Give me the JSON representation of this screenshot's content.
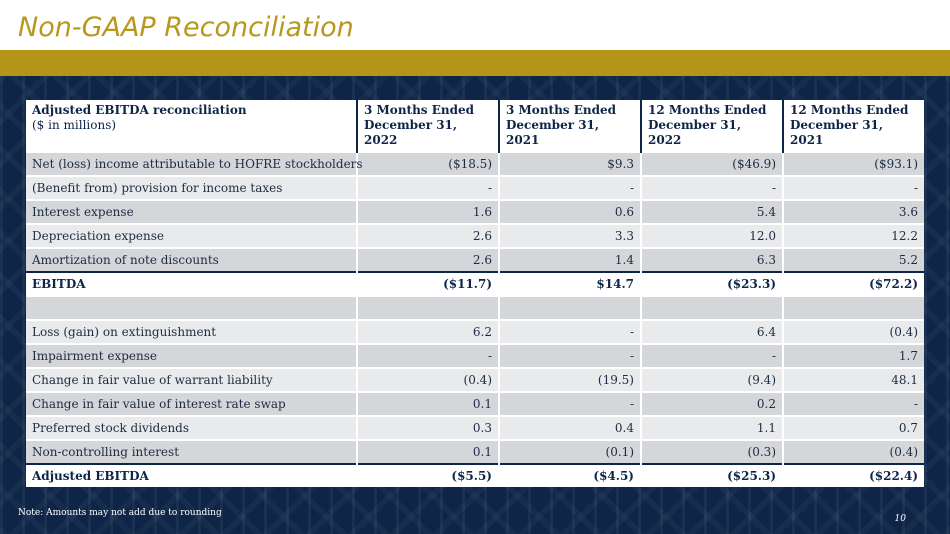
{
  "title": "Non-GAAP Reconciliation",
  "table": {
    "header": {
      "label_main": "Adjusted EBITDA reconciliation",
      "label_sub": "($ in millions)",
      "columns": [
        {
          "line1": "3 Months Ended",
          "line2": "December 31, 2022"
        },
        {
          "line1": "3 Months Ended",
          "line2": "December 31, 2021"
        },
        {
          "line1": "12 Months Ended",
          "line2": "December 31, 2022"
        },
        {
          "line1": "12 Months Ended",
          "line2": "December 31, 2021"
        }
      ]
    },
    "rows": [
      {
        "label": "Net (loss) income attributable to HOFRE stockholders",
        "values": [
          "($18.5)",
          "$9.3",
          "($46.9)",
          "($93.1)"
        ]
      },
      {
        "label": "(Benefit from) provision for income taxes",
        "values": [
          "-",
          "-",
          "-",
          "-"
        ]
      },
      {
        "label": "Interest expense",
        "values": [
          "1.6",
          "0.6",
          "5.4",
          "3.6"
        ]
      },
      {
        "label": "Depreciation expense",
        "values": [
          "2.6",
          "3.3",
          "12.0",
          "12.2"
        ]
      },
      {
        "label": "Amortization of note discounts",
        "values": [
          "2.6",
          "1.4",
          "6.3",
          "5.2"
        ]
      },
      {
        "label": "EBITDA",
        "values": [
          "($11.7)",
          "$14.7",
          "($23.3)",
          "($72.2)"
        ]
      },
      {
        "label": "",
        "values": [
          "",
          "",
          "",
          ""
        ]
      },
      {
        "label": "Loss (gain) on extinguishment",
        "values": [
          "6.2",
          "-",
          "6.4",
          "(0.4)"
        ]
      },
      {
        "label": "Impairment expense",
        "values": [
          "-",
          "-",
          "-",
          "1.7"
        ]
      },
      {
        "label": "Change in fair value of warrant liability",
        "values": [
          "(0.4)",
          "(19.5)",
          "(9.4)",
          "48.1"
        ]
      },
      {
        "label": "Change in fair value of interest rate swap",
        "values": [
          "0.1",
          "-",
          "0.2",
          "-"
        ]
      },
      {
        "label": "Preferred stock dividends",
        "values": [
          "0.3",
          "0.4",
          "1.1",
          "0.7"
        ]
      },
      {
        "label": "Non-controlling interest",
        "values": [
          "0.1",
          "(0.1)",
          "(0.3)",
          "(0.4)"
        ]
      },
      {
        "label": "Adjusted EBITDA",
        "values": [
          "($5.5)",
          "($4.5)",
          "($25.3)",
          "($22.4)"
        ]
      }
    ]
  },
  "note": "Note: Amounts may not add due to rounding",
  "page_number": "10"
}
